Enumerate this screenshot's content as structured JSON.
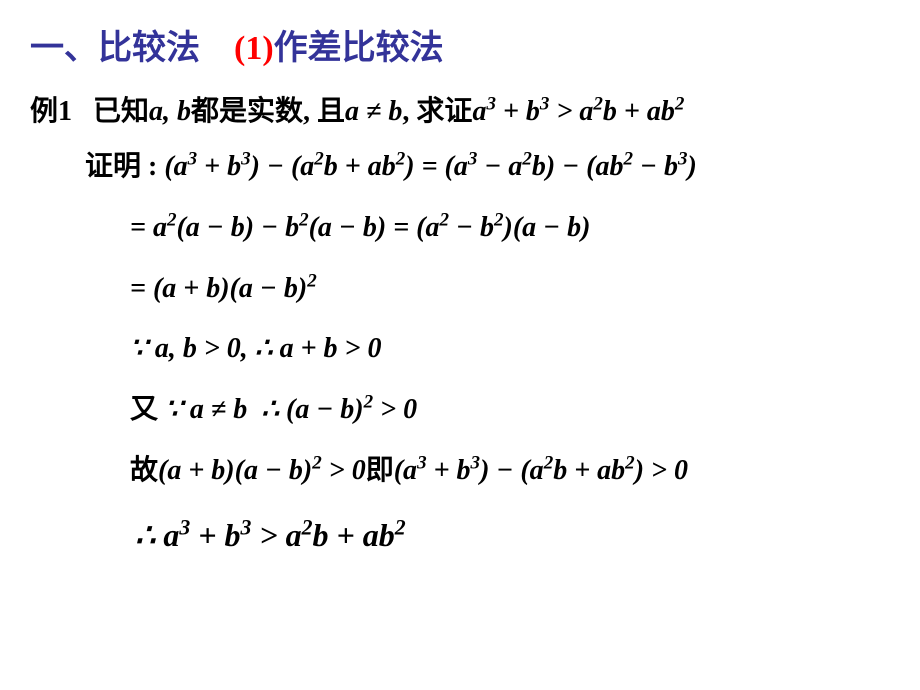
{
  "title": {
    "part1": "一、比较法",
    "part2": "(1)",
    "part3": "作差比较法",
    "color_a": "#333399",
    "color_b": "#ff0000",
    "color_c": "#333399",
    "fontsize": 34
  },
  "example": {
    "label": "例1",
    "text1": "已知",
    "ab": "a, b",
    "text2": "都是实数, 且",
    "neq": "a ≠ b",
    "text3": ", 求证",
    "ineq_lhs_a": "a",
    "ineq_lhs_aexp": "3",
    "ineq_lhs_b": "b",
    "ineq_lhs_bexp": "3",
    "ineq_rhs_t1a": "a",
    "ineq_rhs_t1aexp": "2",
    "ineq_rhs_t1b": "b",
    "ineq_rhs_t2a": "a",
    "ineq_rhs_t2b": "b",
    "ineq_rhs_t2bexp": "2"
  },
  "proof": {
    "label": "证明 :",
    "line1": "(a³ + b³) − (a²b + ab²) = (a³ − a²b) − (ab² − b³)",
    "line2": "= a²(a − b) − b²(a − b) = (a² − b²)(a − b)",
    "line3": "= (a + b)(a − b)²",
    "line4_pre": "∵ a, b > 0, ∴ a + b > 0",
    "line5_pre": "又 ∵ a ≠ b  ∴ (a − b)² > 0",
    "line6": "故(a + b)(a − b)² > 0 即 (a³ + b³) − (a²b + ab²) > 0",
    "line7": "∴ a³ + b³ > a²b + ab²"
  },
  "style": {
    "body_fontsize": 28,
    "body_color": "#000000",
    "background": "#ffffff",
    "font_family": "SimSun",
    "font_weight": "bold",
    "math_style": "italic"
  }
}
